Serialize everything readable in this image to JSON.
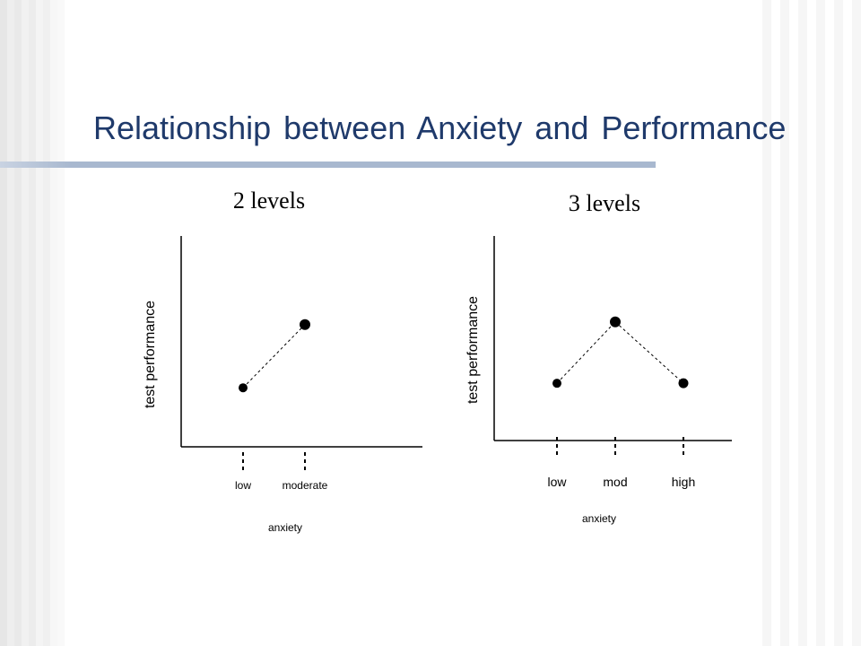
{
  "slide": {
    "title": "Relationship between Anxiety and Performance"
  },
  "chart_data": [
    {
      "type": "line",
      "title": "2 levels",
      "xlabel": "anxiety",
      "ylabel": "test performance",
      "categories": [
        "low",
        "moderate"
      ],
      "values": [
        0.28,
        0.58
      ],
      "ylim": [
        0,
        1
      ],
      "grid": false,
      "line_style": "dotted",
      "marker": "circle",
      "color": "#000000"
    },
    {
      "type": "line",
      "title": "3 levels",
      "xlabel": "anxiety",
      "ylabel": "test performance",
      "categories": [
        "low",
        "mod",
        "high"
      ],
      "values": [
        0.28,
        0.58,
        0.28
      ],
      "ylim": [
        0,
        1
      ],
      "grid": false,
      "line_style": "dotted",
      "marker": "circle",
      "color": "#000000"
    }
  ]
}
